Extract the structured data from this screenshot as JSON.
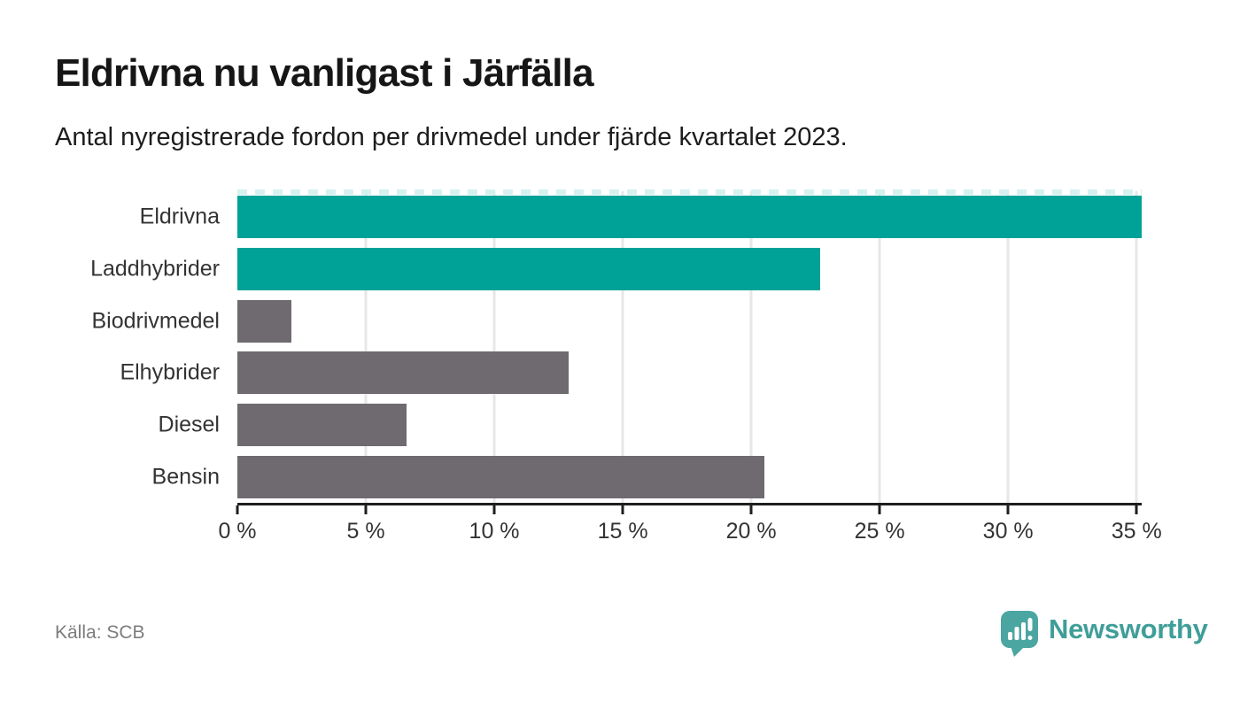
{
  "header": {
    "title": "Eldrivna nu vanligast i Järfälla",
    "subtitle": "Antal nyregistrerade fordon per drivmedel under fjärde kvartalet 2023."
  },
  "chart_data": {
    "type": "bar",
    "orientation": "horizontal",
    "title": "Eldrivna nu vanligast i Järfälla",
    "subtitle": "Antal nyregistrerade fordon per drivmedel under fjärde kvartalet 2023.",
    "categories": [
      "Eldrivna",
      "Laddhybrider",
      "Biodrivmedel",
      "Elhybrider",
      "Diesel",
      "Bensin"
    ],
    "values": [
      35.2,
      22.7,
      2.1,
      12.9,
      6.6,
      20.5
    ],
    "unit": "%",
    "xlim": [
      0,
      35.2
    ],
    "x_ticks": [
      0,
      5,
      10,
      15,
      20,
      25,
      30,
      35
    ],
    "x_tick_labels": [
      "0 %",
      "5 %",
      "10 %",
      "15 %",
      "20 %",
      "25 %",
      "30 %",
      "35 %"
    ],
    "bar_colors": [
      "#00a298",
      "#00a298",
      "#6e6a70",
      "#6e6a70",
      "#6e6a70",
      "#6e6a70"
    ],
    "grid": true,
    "legend": "none",
    "top_edge_dashed": true
  },
  "footer": {
    "source": "Källa: SCB",
    "brand": "Newsworthy"
  },
  "colors": {
    "highlight": "#00a298",
    "base_gray": "#6e6a70",
    "brand_teal": "#3f9e99",
    "icon_teal": "#4ba6a1",
    "gridline": "#e7e7e7",
    "axis": "#1f1f1f",
    "dash": "#d5f1ef"
  }
}
